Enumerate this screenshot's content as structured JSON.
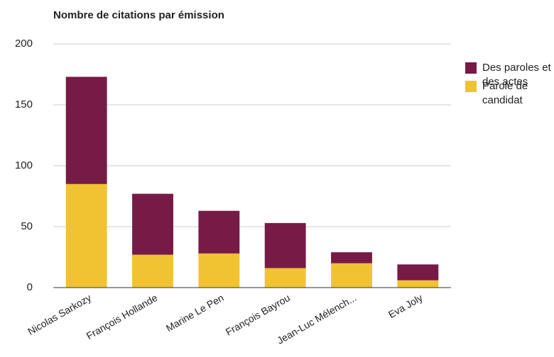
{
  "chart_data": {
    "type": "stacked_bar",
    "title": "Nombre de citations par émission",
    "categories": [
      "Nicolas Sarkozy",
      "François Hollande",
      "Marine Le Pen",
      "François Bayrou",
      "Jean-Luc Mélench...",
      "Eva Joly"
    ],
    "series": [
      {
        "name": "Des paroles et des actes",
        "color": "#761b45",
        "values": [
          88,
          50,
          35,
          37,
          9,
          13
        ]
      },
      {
        "name": "Parole de candidat",
        "color": "#f1c232",
        "values": [
          85,
          27,
          28,
          16,
          20,
          6
        ]
      }
    ],
    "ylim": [
      0,
      200
    ],
    "yticks": [
      0,
      50,
      100,
      150,
      200
    ],
    "grid": true,
    "legend": "right"
  }
}
